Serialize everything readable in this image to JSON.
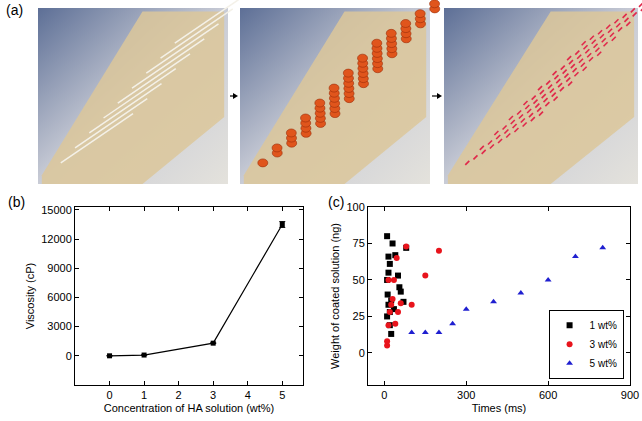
{
  "panel_a": {
    "label": "(a)"
  },
  "chart_data": [
    {
      "type": "line",
      "label": "(b)",
      "x_label": "Concentration of HA solution (wt%)",
      "y_label": "Viscosity (cP)",
      "x": [
        0,
        1,
        3,
        5
      ],
      "values": [
        1,
        80,
        1300,
        13500
      ],
      "errors": [
        0,
        5,
        40,
        300
      ],
      "color": "#000000",
      "marker": "square",
      "xlim": [
        -1,
        5.6
      ],
      "xticks": [
        0,
        1,
        2,
        3,
        4,
        5
      ],
      "ylim": [
        -3000,
        15300
      ],
      "yticks": [
        0,
        3000,
        6000,
        9000,
        12000,
        15000
      ],
      "grid": false
    },
    {
      "type": "scatter",
      "label": "(c)",
      "x_label": "Times (ms)",
      "y_label": "Weight of coated solution (ng)",
      "series": [
        {
          "name": "1 wt%",
          "color": "#000000",
          "marker": "square",
          "x": [
            10,
            15,
            20,
            10,
            12,
            15,
            20,
            10,
            20,
            25,
            30,
            40,
            50,
            55,
            60,
            70,
            80,
            15,
            25,
            35
          ],
          "values": [
            80,
            66,
            61,
            50,
            40,
            33,
            28,
            25,
            19,
            13,
            75,
            67,
            53,
            45,
            42,
            35,
            72,
            55,
            36,
            30
          ]
        },
        {
          "name": "3 wt%",
          "color": "#e8141c",
          "marker": "circle",
          "x": [
            10,
            10,
            15,
            20,
            25,
            30,
            35,
            40,
            50,
            60,
            80,
            100,
            150,
            200,
            15,
            45
          ],
          "values": [
            5,
            8,
            19,
            28,
            33,
            37,
            50,
            20,
            28,
            34,
            73,
            33,
            53,
            70,
            50,
            65
          ]
        },
        {
          "name": "5 wt%",
          "color": "#1f1fd0",
          "marker": "triangle",
          "x": [
            100,
            150,
            200,
            250,
            300,
            400,
            500,
            600,
            700,
            800
          ],
          "values": [
            14,
            14,
            14,
            20,
            30,
            35,
            41,
            50,
            66,
            72
          ]
        }
      ],
      "xlim": [
        -60,
        900
      ],
      "xticks": [
        0,
        300,
        600,
        900
      ],
      "ylim": [
        -22,
        100
      ],
      "yticks": [
        0,
        25,
        50,
        75,
        100
      ],
      "grid": false,
      "legend": "lower right"
    }
  ]
}
